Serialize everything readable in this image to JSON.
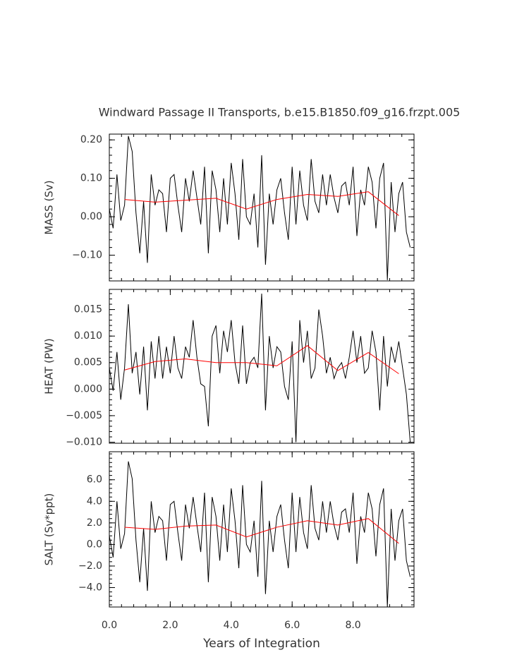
{
  "chart_data": [
    {
      "type": "line",
      "title": "Windward Passage II Transports, b.e15.B1850.f09_g16.frzpt.005",
      "ylabel": "MASS (Sv)",
      "xlim": [
        0,
        10
      ],
      "ylim": [
        -0.167,
        0.215
      ],
      "yticks": [
        {
          "value": -0.1,
          "label": "−0.10"
        },
        {
          "value": 0,
          "label": "0.00"
        },
        {
          "value": 0.1,
          "label": "0.10"
        },
        {
          "value": 0.2,
          "label": "0.20"
        }
      ],
      "series": [
        {
          "color": "#000000",
          "x": [
            0,
            0.125,
            0.25,
            0.375,
            0.5,
            0.625,
            0.75,
            0.875,
            1,
            1.125,
            1.25,
            1.375,
            1.5,
            1.625,
            1.75,
            1.875,
            2,
            2.125,
            2.25,
            2.375,
            2.5,
            2.625,
            2.75,
            2.875,
            3,
            3.125,
            3.25,
            3.375,
            3.5,
            3.625,
            3.75,
            3.875,
            4,
            4.125,
            4.25,
            4.375,
            4.5,
            4.625,
            4.75,
            4.875,
            5,
            5.125,
            5.25,
            5.375,
            5.5,
            5.625,
            5.75,
            5.875,
            6,
            6.125,
            6.25,
            6.375,
            6.5,
            6.625,
            6.75,
            6.875,
            7,
            7.125,
            7.25,
            7.375,
            7.5,
            7.625,
            7.75,
            7.875,
            8,
            8.125,
            8.25,
            8.375,
            8.5,
            8.625,
            8.75,
            8.875,
            9,
            9.125,
            9.25,
            9.375,
            9.5,
            9.625,
            9.75,
            9.875
          ],
          "values": [
            0.02,
            -0.03,
            0.11,
            -0.01,
            0.03,
            0.21,
            0.17,
            0.01,
            -0.095,
            0.04,
            -0.12,
            0.11,
            0.03,
            0.07,
            0.06,
            -0.04,
            0.1,
            0.11,
            0.03,
            -0.04,
            0.1,
            0.04,
            0.12,
            0.05,
            -0.02,
            0.13,
            -0.095,
            0.12,
            0.07,
            -0.04,
            0.1,
            -0.02,
            0.14,
            0.06,
            -0.06,
            0.15,
            0.0,
            -0.02,
            0.06,
            -0.08,
            0.16,
            -0.125,
            0.06,
            -0.02,
            0.07,
            0.1,
            0.01,
            -0.06,
            0.13,
            -0.02,
            0.12,
            0.03,
            -0.01,
            0.15,
            0.04,
            0.01,
            0.11,
            0.03,
            0.11,
            0.05,
            0.01,
            0.08,
            0.09,
            0.03,
            0.13,
            -0.05,
            0.07,
            0.03,
            0.13,
            0.09,
            -0.03,
            0.1,
            0.14,
            -0.165,
            0.09,
            -0.04,
            0.06,
            0.09,
            -0.04,
            -0.08
          ]
        },
        {
          "color": "#ff0000",
          "x": [
            0.5,
            1.5,
            2.5,
            3.5,
            4.5,
            5.5,
            6.5,
            7.5,
            8.5,
            9.5
          ],
          "values": [
            0.045,
            0.038,
            0.043,
            0.048,
            0.02,
            0.045,
            0.058,
            0.053,
            0.065,
            0.003
          ]
        }
      ]
    },
    {
      "type": "line",
      "ylabel": "HEAT (PW)",
      "xlim": [
        0,
        10
      ],
      "ylim": [
        -0.0102,
        0.0188
      ],
      "yticks": [
        {
          "value": -0.01,
          "label": "−0.010"
        },
        {
          "value": -0.005,
          "label": "−0.005"
        },
        {
          "value": 0,
          "label": "0.000"
        },
        {
          "value": 0.005,
          "label": "0.005"
        },
        {
          "value": 0.01,
          "label": "0.010"
        },
        {
          "value": 0.015,
          "label": "0.015"
        }
      ],
      "series": [
        {
          "color": "#000000",
          "x": [
            0,
            0.125,
            0.25,
            0.375,
            0.5,
            0.625,
            0.75,
            0.875,
            1,
            1.125,
            1.25,
            1.375,
            1.5,
            1.625,
            1.75,
            1.875,
            2,
            2.125,
            2.25,
            2.375,
            2.5,
            2.625,
            2.75,
            2.875,
            3,
            3.125,
            3.25,
            3.375,
            3.5,
            3.625,
            3.75,
            3.875,
            4,
            4.125,
            4.25,
            4.375,
            4.5,
            4.625,
            4.75,
            4.875,
            5,
            5.125,
            5.25,
            5.375,
            5.5,
            5.625,
            5.75,
            5.875,
            6,
            6.125,
            6.25,
            6.375,
            6.5,
            6.625,
            6.75,
            6.875,
            7,
            7.125,
            7.25,
            7.375,
            7.5,
            7.625,
            7.75,
            7.875,
            8,
            8.125,
            8.25,
            8.375,
            8.5,
            8.625,
            8.75,
            8.875,
            9,
            9.125,
            9.25,
            9.375,
            9.5,
            9.625,
            9.75,
            9.875
          ],
          "values": [
            0.004,
            -0.0003,
            0.007,
            -0.002,
            0.004,
            0.016,
            0.003,
            0.007,
            -0.001,
            0.008,
            -0.004,
            0.009,
            0.002,
            0.01,
            0.002,
            0.008,
            0.003,
            0.01,
            0.004,
            0.002,
            0.008,
            0.006,
            0.013,
            0.006,
            0.001,
            0.0005,
            -0.007,
            0.01,
            0.012,
            0.003,
            0.011,
            0.007,
            0.013,
            0.005,
            0.001,
            0.012,
            0.001,
            0.005,
            0.006,
            0.004,
            0.018,
            -0.004,
            0.01,
            0.004,
            0.008,
            0.007,
            0.0005,
            -0.002,
            0.009,
            -0.01,
            0.013,
            0.005,
            0.011,
            0.002,
            0.004,
            0.015,
            0.01,
            0.003,
            0.006,
            0.002,
            0.004,
            0.005,
            0.002,
            0.006,
            0.011,
            0.005,
            0.01,
            0.003,
            0.004,
            0.011,
            0.007,
            -0.004,
            0.01,
            0.0005,
            0.008,
            0.005,
            0.009,
            0.004,
            -0.001,
            -0.01
          ]
        },
        {
          "color": "#ff0000",
          "x": [
            0.5,
            1.5,
            2.5,
            3.5,
            4.5,
            5.5,
            6.5,
            7.5,
            8.5,
            9.5
          ],
          "values": [
            0.0036,
            0.0052,
            0.0057,
            0.005,
            0.005,
            0.0044,
            0.0082,
            0.0035,
            0.0069,
            0.0029
          ]
        }
      ]
    },
    {
      "type": "line",
      "ylabel": "SALT (Sv*ppt)",
      "xlabel": "Years of Integration",
      "xlim": [
        0,
        10
      ],
      "ylim": [
        -5.8,
        8.6
      ],
      "xticks": [
        {
          "value": 0,
          "label": "0.0"
        },
        {
          "value": 2,
          "label": "2.0"
        },
        {
          "value": 4,
          "label": "4.0"
        },
        {
          "value": 6,
          "label": "6.0"
        },
        {
          "value": 8,
          "label": "8.0"
        }
      ],
      "yticks": [
        {
          "value": -4,
          "label": "−4.0"
        },
        {
          "value": -2,
          "label": "−2.0"
        },
        {
          "value": 0,
          "label": "0.0"
        },
        {
          "value": 2,
          "label": "2.0"
        },
        {
          "value": 4,
          "label": "4.0"
        },
        {
          "value": 6,
          "label": "6.0"
        }
      ],
      "series": [
        {
          "color": "#000000",
          "x": [
            0,
            0.125,
            0.25,
            0.375,
            0.5,
            0.625,
            0.75,
            0.875,
            1,
            1.125,
            1.25,
            1.375,
            1.5,
            1.625,
            1.75,
            1.875,
            2,
            2.125,
            2.25,
            2.375,
            2.5,
            2.625,
            2.75,
            2.875,
            3,
            3.125,
            3.25,
            3.375,
            3.5,
            3.625,
            3.75,
            3.875,
            4,
            4.125,
            4.25,
            4.375,
            4.5,
            4.625,
            4.75,
            4.875,
            5,
            5.125,
            5.25,
            5.375,
            5.5,
            5.625,
            5.75,
            5.875,
            6,
            6.125,
            6.25,
            6.375,
            6.5,
            6.625,
            6.75,
            6.875,
            7,
            7.125,
            7.25,
            7.375,
            7.5,
            7.625,
            7.75,
            7.875,
            8,
            8.125,
            8.25,
            8.375,
            8.5,
            8.625,
            8.75,
            8.875,
            9,
            9.125,
            9.25,
            9.375,
            9.5,
            9.625,
            9.75,
            9.875
          ],
          "values": [
            0.8,
            -1.2,
            4.0,
            -0.4,
            1.0,
            7.7,
            6.1,
            0.4,
            -3.5,
            1.5,
            -4.3,
            4.0,
            1.1,
            2.6,
            2.2,
            -1.5,
            3.7,
            4.0,
            1.1,
            -1.5,
            3.7,
            1.5,
            4.4,
            1.8,
            -0.7,
            4.8,
            -3.5,
            4.4,
            2.6,
            -1.5,
            3.7,
            -0.7,
            5.2,
            2.2,
            -2.2,
            5.5,
            0.0,
            -0.7,
            2.2,
            -3.0,
            5.9,
            -4.6,
            2.2,
            -0.7,
            2.6,
            3.7,
            0.4,
            -2.2,
            4.8,
            -0.7,
            4.4,
            1.1,
            -0.4,
            5.5,
            1.5,
            0.4,
            4.0,
            1.1,
            4.0,
            1.8,
            0.4,
            3.0,
            3.3,
            1.1,
            4.8,
            -1.8,
            2.6,
            1.1,
            4.8,
            3.3,
            -1.1,
            3.7,
            5.2,
            -5.8,
            3.3,
            -1.5,
            2.2,
            3.3,
            -1.5,
            -3.0
          ]
        },
        {
          "color": "#ff0000",
          "x": [
            0.5,
            1.5,
            2.5,
            3.5,
            4.5,
            5.5,
            6.5,
            7.5,
            8.5,
            9.5
          ],
          "values": [
            1.6,
            1.4,
            1.7,
            1.8,
            0.7,
            1.6,
            2.2,
            1.8,
            2.4,
            0.1
          ]
        }
      ]
    }
  ]
}
